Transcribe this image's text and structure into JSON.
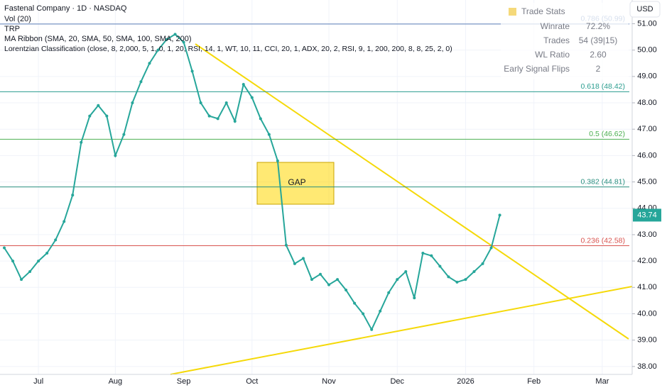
{
  "chart_data": {
    "type": "line",
    "title": "Fastenal Company · 1D · NASDAQ",
    "indicators": [
      "Vol (20)",
      "TRP",
      "MA Ribbon (SMA, 20, SMA, 50, SMA, 100, SMA, 200)",
      "Lorentzian Classification (close, 8, 2,000, 5, 1, 0, 1, 20, RSI, 14, 1, WT, 10, 11, CCI, 20, 1, ADX, 20, 2, RSI, 9, 1, 200, 200, 8, 8, 25, 2, 0)"
    ],
    "currency": "USD",
    "categories": [
      null,
      null,
      null,
      null,
      "Jul",
      null,
      null,
      null,
      null,
      null,
      null,
      null,
      null,
      "Aug",
      null,
      null,
      null,
      null,
      null,
      null,
      null,
      "Sep",
      null,
      null,
      null,
      null,
      null,
      null,
      null,
      "Oct",
      null,
      null,
      null,
      null,
      null,
      null,
      null,
      null,
      "Nov",
      null,
      null,
      null,
      null,
      null,
      null,
      null,
      "Dec",
      null,
      null,
      null,
      null,
      null,
      null,
      null,
      "2026",
      null,
      null,
      null,
      null,
      null,
      null,
      null,
      "Feb",
      null,
      null,
      null,
      null,
      null,
      null,
      null,
      "Mar",
      null,
      null,
      null
    ],
    "values": [
      42.5,
      42.0,
      41.3,
      41.6,
      42.0,
      42.3,
      42.8,
      43.5,
      44.5,
      46.5,
      47.5,
      47.9,
      47.5,
      46.0,
      46.8,
      48.0,
      48.8,
      49.5,
      50.0,
      50.4,
      50.6,
      50.3,
      49.2,
      48.0,
      47.5,
      47.4,
      48.0,
      47.3,
      48.7,
      48.2,
      47.4,
      46.8,
      45.8,
      42.6,
      41.9,
      42.1,
      41.3,
      41.5,
      41.1,
      41.3,
      40.9,
      40.4,
      40.0,
      39.4,
      40.1,
      40.8,
      41.3,
      41.6,
      40.6,
      42.3,
      42.2,
      41.8,
      41.4,
      41.2,
      41.3,
      41.6,
      41.9,
      42.5,
      43.74,
      null,
      null,
      null,
      null,
      null,
      null,
      null,
      null,
      null,
      null,
      null,
      null,
      null,
      null,
      null
    ],
    "color": "#26a69a",
    "ylim": [
      37.7,
      51.9
    ],
    "yticks": [
      {
        "value": 38,
        "label": "38.00"
      },
      {
        "value": 39,
        "label": "39.00"
      },
      {
        "value": 40,
        "label": "40.00"
      },
      {
        "value": 41,
        "label": "41.00"
      },
      {
        "value": 42,
        "label": "42.00"
      },
      {
        "value": 43,
        "label": "43.00"
      },
      {
        "value": 44,
        "label": "44.00"
      },
      {
        "value": 45,
        "label": "45.00"
      },
      {
        "value": 46,
        "label": "46.00"
      },
      {
        "value": 47,
        "label": "47.00"
      },
      {
        "value": 48,
        "label": "48.00"
      },
      {
        "value": 49,
        "label": "49.00"
      },
      {
        "value": 50,
        "label": "50.00"
      },
      {
        "value": 51,
        "label": "51.00"
      }
    ],
    "grid": true,
    "fib_levels": [
      {
        "value": 50.99,
        "label": "0.786 (50.99)",
        "color": "#5b7fb8"
      },
      {
        "value": 48.42,
        "label": "0.618 (48.42)",
        "color": "#2a9d8f"
      },
      {
        "value": 46.62,
        "label": "0.5 (46.62)",
        "color": "#4caf50"
      },
      {
        "value": 44.81,
        "label": "0.382 (44.81)",
        "color": "#2a8f7f"
      },
      {
        "value": 42.58,
        "label": "0.236 (42.58)",
        "color": "#d9534f"
      }
    ],
    "gap_label": "GAP",
    "trade_stats": {
      "title": "Trade Stats",
      "rows": [
        [
          "Winrate",
          "72.2%"
        ],
        [
          "Trades",
          "54 (39|15)"
        ],
        [
          "WL Ratio",
          "2.60"
        ],
        [
          "Early Signal Flips",
          "2"
        ]
      ]
    }
  }
}
